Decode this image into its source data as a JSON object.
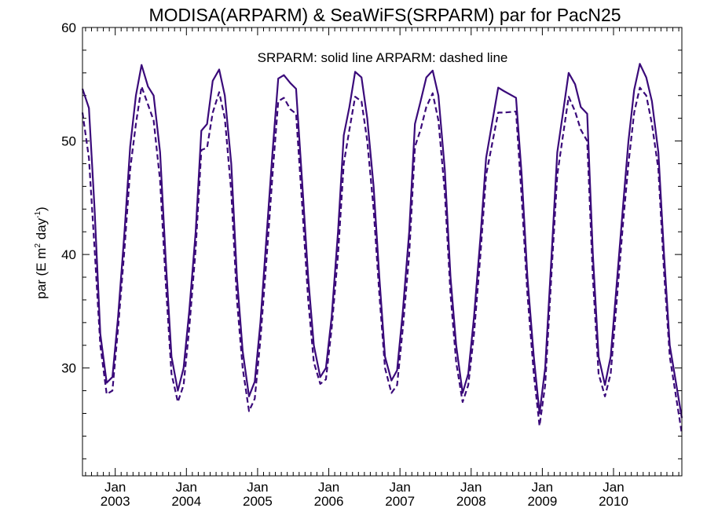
{
  "chart_data": {
    "type": "line",
    "title": "MODISA(ARPARM) & SeaWiFS(SRPARM)  par for PacN25",
    "annotation": "SRPARM: solid line   ARPARM: dashed line",
    "ylabel": {
      "base": "par (E m",
      "sup1": "2",
      "mid": " day",
      "sup2": "-1",
      "end": ")"
    },
    "ylim": [
      20.5,
      60
    ],
    "xlim": [
      2002.54,
      2010.96
    ],
    "y_ticks": [
      30,
      40,
      50,
      60
    ],
    "x_ticks": [
      {
        "x": 2003.0,
        "month": "Jan",
        "year": "2003"
      },
      {
        "x": 2004.0,
        "month": "Jan",
        "year": "2004"
      },
      {
        "x": 2005.0,
        "month": "Jan",
        "year": "2005"
      },
      {
        "x": 2006.0,
        "month": "Jan",
        "year": "2006"
      },
      {
        "x": 2007.0,
        "month": "Jan",
        "year": "2007"
      },
      {
        "x": 2008.0,
        "month": "Jan",
        "year": "2008"
      },
      {
        "x": 2009.0,
        "month": "Jan",
        "year": "2009"
      },
      {
        "x": 2010.0,
        "month": "Jan",
        "year": "2010"
      }
    ],
    "color": "#3a0a7a",
    "series": [
      {
        "name": "SRPARM",
        "style": "solid",
        "points": [
          [
            2002.54,
            54.6
          ],
          [
            2002.63,
            52.9
          ],
          [
            2002.71,
            44.0
          ],
          [
            2002.79,
            33.0
          ],
          [
            2002.88,
            28.7
          ],
          [
            2002.96,
            29.2
          ],
          [
            2003.04,
            34.5
          ],
          [
            2003.13,
            42.0
          ],
          [
            2003.21,
            49.5
          ],
          [
            2003.29,
            54.0
          ],
          [
            2003.37,
            56.7
          ],
          [
            2003.46,
            54.8
          ],
          [
            2003.54,
            54.0
          ],
          [
            2003.63,
            49.0
          ],
          [
            2003.71,
            39.5
          ],
          [
            2003.79,
            31.0
          ],
          [
            2003.88,
            28.0
          ],
          [
            2003.96,
            30.0
          ],
          [
            2004.04,
            35.0
          ],
          [
            2004.13,
            42.0
          ],
          [
            2004.21,
            50.9
          ],
          [
            2004.29,
            51.5
          ],
          [
            2004.37,
            55.3
          ],
          [
            2004.46,
            56.3
          ],
          [
            2004.54,
            54.0
          ],
          [
            2004.63,
            48.0
          ],
          [
            2004.71,
            38.0
          ],
          [
            2004.79,
            31.5
          ],
          [
            2004.88,
            27.5
          ],
          [
            2004.96,
            28.8
          ],
          [
            2005.04,
            34.0
          ],
          [
            2005.13,
            42.0
          ],
          [
            2005.21,
            49.0
          ],
          [
            2005.29,
            55.5
          ],
          [
            2005.37,
            55.8
          ],
          [
            2005.46,
            55.1
          ],
          [
            2005.54,
            54.6
          ],
          [
            2005.63,
            46.0
          ],
          [
            2005.71,
            38.0
          ],
          [
            2005.79,
            32.0
          ],
          [
            2005.88,
            29.2
          ],
          [
            2005.96,
            30.0
          ],
          [
            2006.04,
            34.5
          ],
          [
            2006.13,
            42.0
          ],
          [
            2006.21,
            50.5
          ],
          [
            2006.29,
            53.0
          ],
          [
            2006.37,
            56.1
          ],
          [
            2006.46,
            55.6
          ],
          [
            2006.54,
            52.0
          ],
          [
            2006.63,
            46.0
          ],
          [
            2006.71,
            38.0
          ],
          [
            2006.79,
            31.0
          ],
          [
            2006.88,
            28.9
          ],
          [
            2006.96,
            29.8
          ],
          [
            2007.04,
            35.0
          ],
          [
            2007.13,
            42.0
          ],
          [
            2007.21,
            51.5
          ],
          [
            2007.29,
            53.5
          ],
          [
            2007.37,
            55.6
          ],
          [
            2007.46,
            56.2
          ],
          [
            2007.54,
            54.0
          ],
          [
            2007.63,
            47.5
          ],
          [
            2007.71,
            38.0
          ],
          [
            2007.79,
            32.0
          ],
          [
            2007.88,
            27.8
          ],
          [
            2007.96,
            29.5
          ],
          [
            2008.04,
            34.5
          ],
          [
            2008.13,
            41.5
          ],
          [
            2008.21,
            48.5
          ],
          [
            2008.38,
            54.7
          ],
          [
            2008.46,
            54.4
          ],
          [
            2008.63,
            53.8
          ],
          [
            2008.71,
            47.0
          ],
          [
            2008.79,
            38.0
          ],
          [
            2008.88,
            31.0
          ],
          [
            2008.96,
            26.0
          ],
          [
            2009.04,
            30.0
          ],
          [
            2009.13,
            40.0
          ],
          [
            2009.21,
            49.0
          ],
          [
            2009.29,
            52.5
          ],
          [
            2009.37,
            56.0
          ],
          [
            2009.46,
            55.0
          ],
          [
            2009.54,
            53.0
          ],
          [
            2009.63,
            52.4
          ],
          [
            2009.71,
            40.0
          ],
          [
            2009.79,
            31.0
          ],
          [
            2009.88,
            28.5
          ],
          [
            2009.96,
            31.0
          ],
          [
            2010.04,
            37.0
          ],
          [
            2010.13,
            44.0
          ],
          [
            2010.21,
            50.0
          ],
          [
            2010.29,
            54.5
          ],
          [
            2010.37,
            56.8
          ],
          [
            2010.46,
            55.6
          ],
          [
            2010.54,
            53.5
          ],
          [
            2010.63,
            49.0
          ],
          [
            2010.71,
            40.0
          ],
          [
            2010.79,
            32.0
          ],
          [
            2010.96,
            25.6
          ]
        ]
      },
      {
        "name": "ARPARM",
        "style": "dashed",
        "points": [
          [
            2002.54,
            52.5
          ],
          [
            2002.63,
            48.5
          ],
          [
            2002.71,
            40.5
          ],
          [
            2002.79,
            32.0
          ],
          [
            2002.88,
            27.7
          ],
          [
            2002.96,
            28.0
          ],
          [
            2003.04,
            33.5
          ],
          [
            2003.13,
            40.5
          ],
          [
            2003.21,
            47.5
          ],
          [
            2003.29,
            51.5
          ],
          [
            2003.37,
            54.8
          ],
          [
            2003.46,
            53.2
          ],
          [
            2003.54,
            51.8
          ],
          [
            2003.63,
            46.5
          ],
          [
            2003.71,
            37.5
          ],
          [
            2003.79,
            29.5
          ],
          [
            2003.88,
            27.0
          ],
          [
            2003.96,
            28.5
          ],
          [
            2004.04,
            33.5
          ],
          [
            2004.13,
            40.5
          ],
          [
            2004.21,
            49.2
          ],
          [
            2004.29,
            49.4
          ],
          [
            2004.37,
            52.5
          ],
          [
            2004.46,
            54.3
          ],
          [
            2004.54,
            52.0
          ],
          [
            2004.63,
            45.5
          ],
          [
            2004.71,
            36.0
          ],
          [
            2004.79,
            30.0
          ],
          [
            2004.88,
            26.2
          ],
          [
            2004.96,
            27.3
          ],
          [
            2005.04,
            32.5
          ],
          [
            2005.13,
            40.0
          ],
          [
            2005.21,
            47.0
          ],
          [
            2005.29,
            53.5
          ],
          [
            2005.37,
            53.8
          ],
          [
            2005.46,
            52.8
          ],
          [
            2005.54,
            52.4
          ],
          [
            2005.63,
            44.0
          ],
          [
            2005.71,
            36.0
          ],
          [
            2005.79,
            30.5
          ],
          [
            2005.88,
            28.6
          ],
          [
            2005.96,
            29.0
          ],
          [
            2006.04,
            33.5
          ],
          [
            2006.13,
            40.0
          ],
          [
            2006.21,
            48.0
          ],
          [
            2006.29,
            51.0
          ],
          [
            2006.37,
            53.9
          ],
          [
            2006.46,
            53.5
          ],
          [
            2006.54,
            50.0
          ],
          [
            2006.63,
            44.0
          ],
          [
            2006.71,
            36.5
          ],
          [
            2006.79,
            30.0
          ],
          [
            2006.88,
            27.8
          ],
          [
            2006.96,
            28.5
          ],
          [
            2007.04,
            33.5
          ],
          [
            2007.13,
            40.0
          ],
          [
            2007.21,
            49.5
          ],
          [
            2007.29,
            51.0
          ],
          [
            2007.37,
            53.0
          ],
          [
            2007.46,
            54.2
          ],
          [
            2007.54,
            51.8
          ],
          [
            2007.63,
            45.5
          ],
          [
            2007.71,
            36.5
          ],
          [
            2007.79,
            30.5
          ],
          [
            2007.88,
            27.0
          ],
          [
            2007.96,
            28.5
          ],
          [
            2008.04,
            33.0
          ],
          [
            2008.13,
            40.0
          ],
          [
            2008.21,
            47.0
          ],
          [
            2008.38,
            52.5
          ],
          [
            2008.46,
            52.5
          ],
          [
            2008.63,
            52.6
          ],
          [
            2008.71,
            45.0
          ],
          [
            2008.79,
            36.5
          ],
          [
            2008.88,
            29.5
          ],
          [
            2008.96,
            24.9
          ],
          [
            2009.04,
            28.5
          ],
          [
            2009.13,
            38.5
          ],
          [
            2009.21,
            47.0
          ],
          [
            2009.29,
            50.5
          ],
          [
            2009.37,
            53.9
          ],
          [
            2009.46,
            52.6
          ],
          [
            2009.54,
            51.0
          ],
          [
            2009.63,
            50.0
          ],
          [
            2009.71,
            38.0
          ],
          [
            2009.79,
            29.5
          ],
          [
            2009.88,
            27.5
          ],
          [
            2009.96,
            29.5
          ],
          [
            2010.04,
            35.5
          ],
          [
            2010.13,
            42.5
          ],
          [
            2010.21,
            48.0
          ],
          [
            2010.29,
            52.5
          ],
          [
            2010.37,
            54.7
          ],
          [
            2010.46,
            54.0
          ],
          [
            2010.54,
            51.5
          ],
          [
            2010.63,
            47.5
          ],
          [
            2010.71,
            38.5
          ],
          [
            2010.79,
            31.0
          ],
          [
            2010.96,
            24.2
          ]
        ]
      }
    ]
  }
}
